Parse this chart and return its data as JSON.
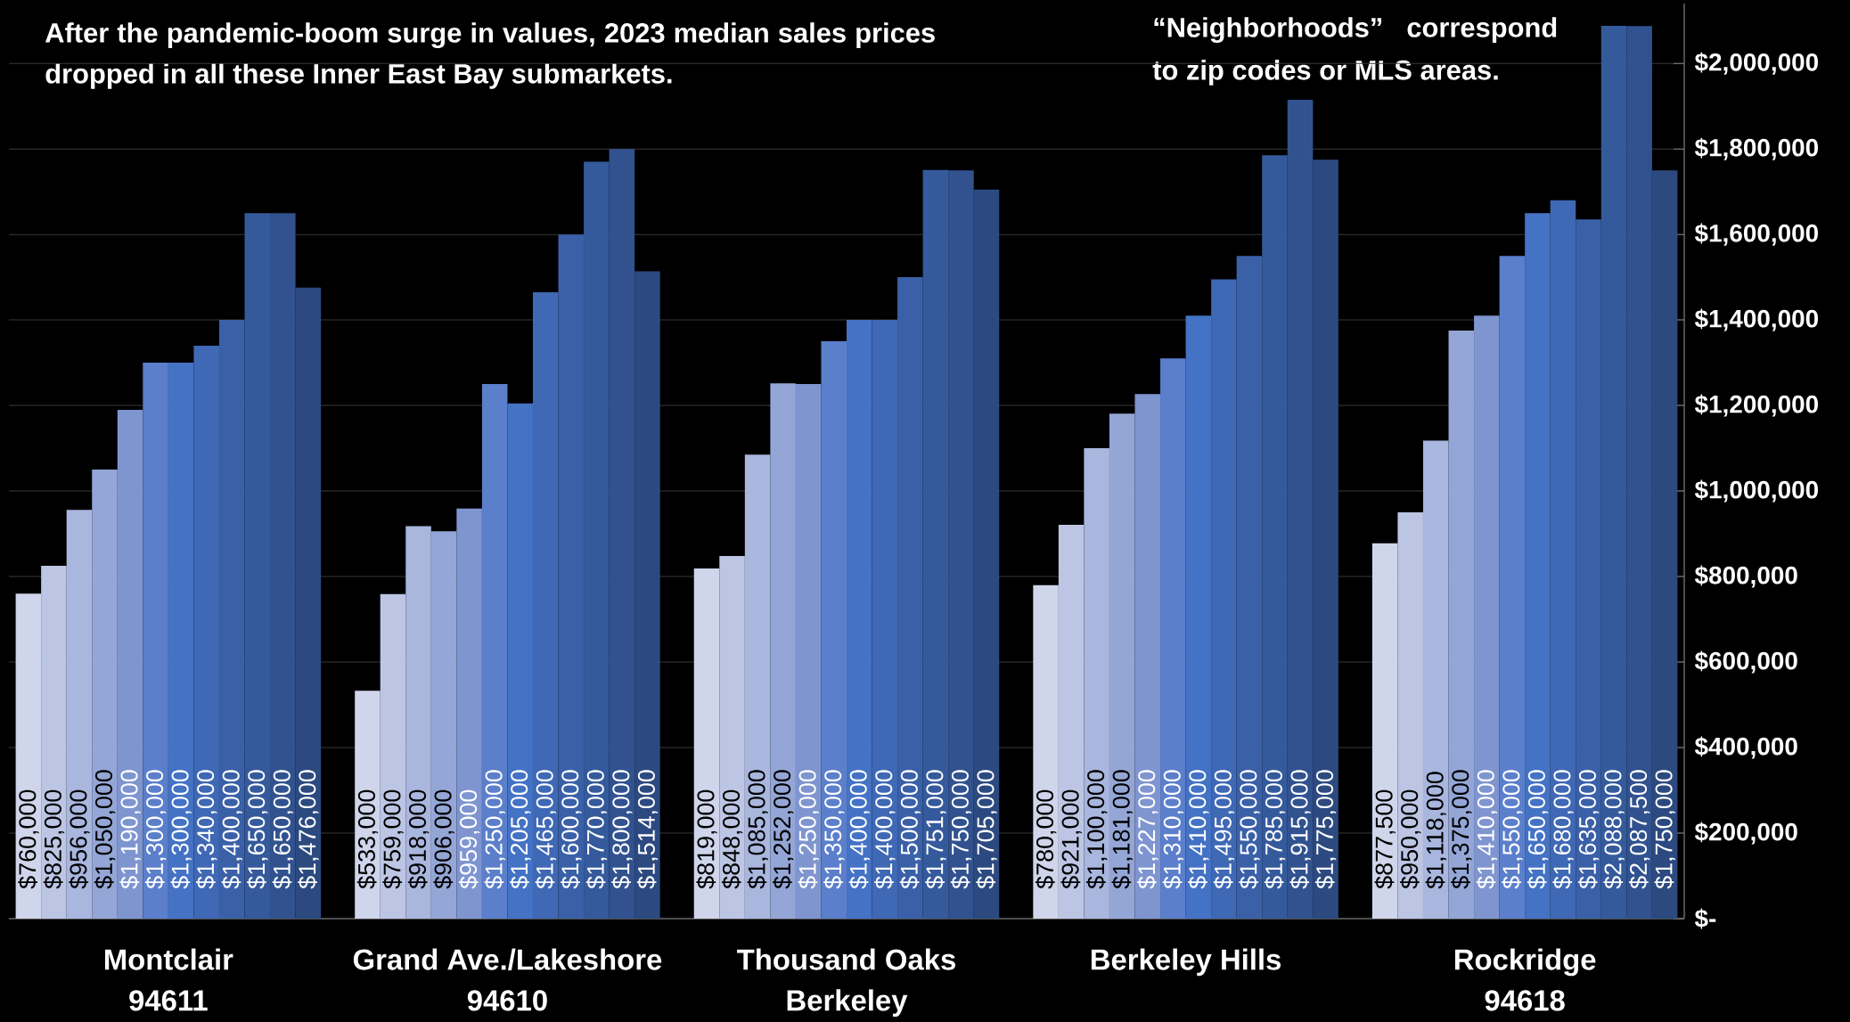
{
  "chart_data": {
    "type": "bar",
    "title": "After the pandemic-boom surge in values, 2023 median sales prices dropped in all these Inner East Bay submarkets.",
    "annotations": [
      "“Neighborhoods” correspond to zip codes or MLS areas."
    ],
    "categories": [
      "Montclair\n94611",
      "Grand Ave./Lakeshore\n94610",
      "Thousand Oaks\nBerkeley",
      "Berkeley Hills",
      "Rockridge\n94618"
    ],
    "series": [
      {
        "color": "#cfd5ea",
        "values": [
          760000,
          533000,
          819000,
          780000,
          877500
        ],
        "value_labels": [
          "$760,000",
          "$533,000",
          "$819,000",
          "$780,000",
          "$877,500"
        ]
      },
      {
        "color": "#bcc6e4",
        "values": [
          825000,
          759000,
          848000,
          921000,
          950000
        ],
        "value_labels": [
          "$825,000",
          "$759,000",
          "$848,000",
          "$921,000",
          "$950,000"
        ]
      },
      {
        "color": "#a9b6de",
        "values": [
          956000,
          918000,
          1085000,
          1100000,
          1118000
        ],
        "value_labels": [
          "$956,000",
          "$918,000",
          "$1,085,000",
          "$1,100,000",
          "$1,118,000"
        ]
      },
      {
        "color": "#94a6d6",
        "values": [
          1050000,
          906000,
          1252000,
          1181000,
          1375000
        ],
        "value_labels": [
          "$1,050,000",
          "$906,000",
          "$1,252,000",
          "$1,181,000",
          "$1,375,000"
        ]
      },
      {
        "color": "#7f95d0",
        "values": [
          1190000,
          959000,
          1250000,
          1227000,
          1410000
        ],
        "value_labels": [
          "$1,190,000",
          "$959,000",
          "$1,250,000",
          "$1,227,000",
          "$1,410,000"
        ]
      },
      {
        "color": "#5b7fcb",
        "values": [
          1300000,
          1250000,
          1350000,
          1310000,
          1550000
        ],
        "value_labels": [
          "$1,300,000",
          "$1,250,000",
          "$1,350,000",
          "$1,310,000",
          "$1,550,000"
        ]
      },
      {
        "color": "#4472c4",
        "values": [
          1300000,
          1205000,
          1400000,
          1410000,
          1650000
        ],
        "value_labels": [
          "$1,300,000",
          "$1,205,000",
          "$1,400,000",
          "$1,410,000",
          "$1,650,000"
        ]
      },
      {
        "color": "#3f68b5",
        "values": [
          1340000,
          1465000,
          1400000,
          1495000,
          1680000
        ],
        "value_labels": [
          "$1,340,000",
          "$1,465,000",
          "$1,400,000",
          "$1,495,000",
          "$1,680,000"
        ]
      },
      {
        "color": "#3a60a8",
        "values": [
          1400000,
          1600000,
          1500000,
          1550000,
          1635000
        ],
        "value_labels": [
          "$1,400,000",
          "$1,600,000",
          "$1,500,000",
          "$1,550,000",
          "$1,635,000"
        ]
      },
      {
        "color": "#355a9c",
        "values": [
          1650000,
          1770000,
          1751000,
          1785000,
          2088000
        ],
        "value_labels": [
          "$1,650,000",
          "$1,770,000",
          "$1,751,000",
          "$1,785,000",
          "$2,088,000"
        ]
      },
      {
        "color": "#31528f",
        "values": [
          1650000,
          1800000,
          1750000,
          1915000,
          2087500
        ],
        "value_labels": [
          "$1,650,000",
          "$1,800,000",
          "$1,750,000",
          "$1,915,000",
          "$2,087,500"
        ]
      },
      {
        "color": "#2c4a80",
        "values": [
          1476000,
          1514000,
          1705000,
          1775000,
          1750000
        ],
        "value_labels": [
          "$1,476,000",
          "$1,514,000",
          "$1,705,000",
          "$1,775,000",
          "$1,750,000"
        ]
      }
    ],
    "ylim": [
      0,
      2140000
    ],
    "yticks": [
      {
        "value": 0,
        "label": "$-"
      },
      {
        "value": 200000,
        "label": "$200,000"
      },
      {
        "value": 400000,
        "label": "$400,000"
      },
      {
        "value": 600000,
        "label": "$600,000"
      },
      {
        "value": 800000,
        "label": "$800,000"
      },
      {
        "value": 1000000,
        "label": "$1,000,000"
      },
      {
        "value": 1200000,
        "label": "$1,200,000"
      },
      {
        "value": 1400000,
        "label": "$1,400,000"
      },
      {
        "value": 1600000,
        "label": "$1,600,000"
      },
      {
        "value": 1800000,
        "label": "$1,800,000"
      },
      {
        "value": 2000000,
        "label": "$2,000,000"
      }
    ],
    "grid": "y"
  }
}
